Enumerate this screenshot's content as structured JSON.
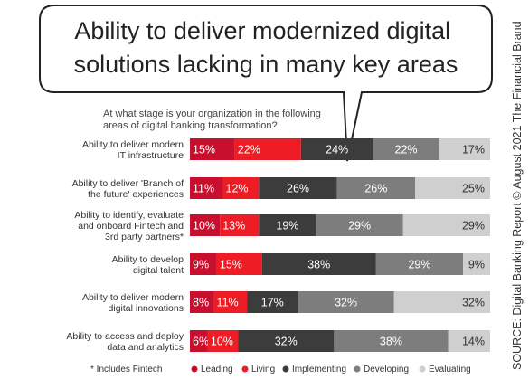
{
  "chart_data": {
    "type": "bar",
    "orientation": "horizontal",
    "stacked": true,
    "title": "Ability to deliver modernized digital solutions lacking in many key areas",
    "subtitle": "At what stage is your organization in the following areas of digital banking transformation?",
    "categories": [
      "Ability to deliver modern IT infrastructure",
      "Ability to deliver 'Branch of the future' experiences",
      "Ability to identify, evaluate and onboard Fintech and 3rd party partners*",
      "Ability to develop digital talent",
      "Ability to deliver modern digital innovations",
      "Ability to access and deploy data and analytics"
    ],
    "series": [
      {
        "name": "Leading",
        "color": "#c8102e",
        "values": [
          15,
          11,
          10,
          9,
          8,
          6
        ]
      },
      {
        "name": "Living",
        "color": "#ee1c25",
        "values": [
          22,
          12,
          13,
          15,
          11,
          10
        ]
      },
      {
        "name": "Implementing",
        "color": "#3c3c3c",
        "values": [
          24,
          26,
          19,
          38,
          17,
          32
        ]
      },
      {
        "name": "Developing",
        "color": "#7d7d7d",
        "values": [
          22,
          26,
          29,
          29,
          32,
          38
        ]
      },
      {
        "name": "Evaluating",
        "color": "#cfcfcf",
        "values": [
          17,
          25,
          29,
          9,
          32,
          14
        ]
      }
    ],
    "value_suffix": "%",
    "legend_position": "bottom",
    "footnote": "* Includes Fintech",
    "source": "SOURCE: Digital Banking Report © August 2021 The Financial Brand"
  }
}
